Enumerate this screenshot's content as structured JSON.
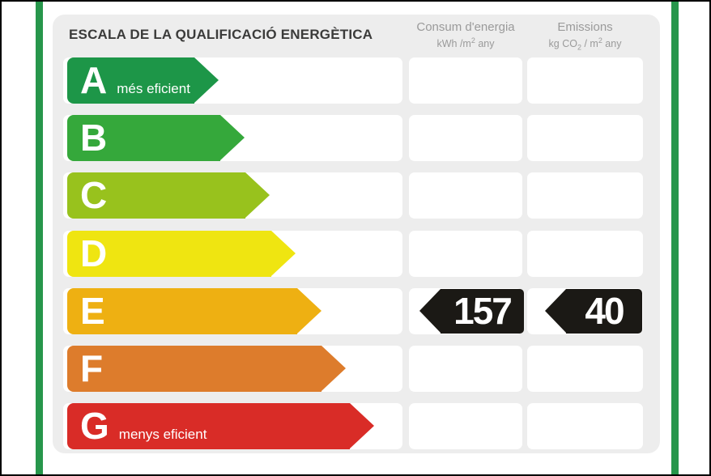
{
  "title": "ESCALA DE LA QUALIFICACIÓ ENERGÈTICA",
  "colors": {
    "frame_green": "#27964b",
    "outer_edge": "#000000",
    "panel_bg": "#ededed",
    "cell_white": "#ffffff",
    "title_text": "#3b3b3a",
    "header_text": "#9a9a9a",
    "badge_black": "#1b1915"
  },
  "columns": {
    "consumption": {
      "label": "Consum d'energia",
      "unit": {
        "p1": "kWh /m",
        "sup1": "2",
        "p2": " any"
      }
    },
    "emissions": {
      "label": "Emissions",
      "unit": {
        "p1": "kg CO",
        "sub1": "2",
        "p2": " / m",
        "sup2": "2",
        "p3": " any"
      }
    }
  },
  "scale": {
    "rows": [
      {
        "grade": "A",
        "note": "més eficient",
        "color": "#1d9648",
        "arrow_width": 187
      },
      {
        "grade": "B",
        "note": "",
        "color": "#35a83b",
        "arrow_width": 219
      },
      {
        "grade": "C",
        "note": "",
        "color": "#98c21d",
        "arrow_width": 250
      },
      {
        "grade": "D",
        "note": "",
        "color": "#efe511",
        "arrow_width": 282
      },
      {
        "grade": "E",
        "note": "",
        "color": "#eeb012",
        "arrow_width": 314
      },
      {
        "grade": "F",
        "note": "",
        "color": "#dd7c2c",
        "arrow_width": 344
      },
      {
        "grade": "G",
        "note": "menys eficient",
        "color": "#d92c27",
        "arrow_width": 379
      }
    ]
  },
  "result": {
    "grade": "E",
    "row_index": 4,
    "consumption_value": "157",
    "emissions_value": "40"
  },
  "chart_data": {
    "type": "bar",
    "title": "ESCALA DE LA QUALIFICACIÓ ENERGÈTICA",
    "categories": [
      "A",
      "B",
      "C",
      "D",
      "E",
      "F",
      "G"
    ],
    "series": [
      {
        "name": "grade arrow length (relative px)",
        "values": [
          187,
          219,
          250,
          282,
          314,
          344,
          379
        ]
      }
    ],
    "bar_colors": [
      "#1d9648",
      "#35a83b",
      "#98c21d",
      "#efe511",
      "#eeb012",
      "#dd7c2c",
      "#d92c27"
    ],
    "xlabel": "",
    "ylabel": "",
    "legend_position": "none",
    "grid": false,
    "annotations": {
      "rating_grade": "E",
      "consum_energia_kwh_m2_any": 157,
      "emissions_kg_co2_m2_any": 40,
      "best_label": "A més eficient",
      "worst_label": "G menys eficient"
    }
  }
}
